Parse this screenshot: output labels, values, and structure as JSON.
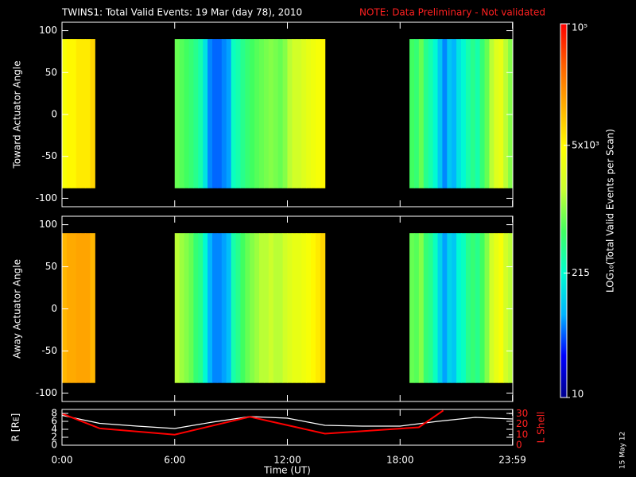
{
  "title": "TWINS1: Total Valid Events: 19 Mar (day  78), 2010",
  "note": "NOTE: Data Preliminary - Not validated",
  "stamp": "15 May 12",
  "chart_data": [
    {
      "type": "heatmap",
      "ylabel": "Toward Actuator Angle",
      "xlim": [
        0,
        24
      ],
      "xticks": [
        0,
        6,
        12,
        18,
        {
          "value": 23.983,
          "label": "23:59"
        }
      ],
      "ylim": [
        -110,
        110
      ],
      "yticks": [
        100,
        50,
        0,
        -50,
        -100
      ],
      "angle_range": [
        -88,
        90
      ],
      "x": [
        0,
        0.25,
        0.5,
        0.75,
        1,
        1.25,
        1.5,
        6,
        6.25,
        6.5,
        6.75,
        7,
        7.25,
        7.5,
        7.75,
        8,
        8.25,
        8.5,
        8.75,
        9,
        9.25,
        9.5,
        9.75,
        10,
        10.25,
        10.5,
        10.75,
        11,
        11.25,
        11.5,
        11.75,
        12,
        12.25,
        12.5,
        12.75,
        13,
        13.25,
        13.5,
        13.75,
        18.5,
        18.75,
        19,
        19.25,
        19.5,
        19.75,
        20,
        20.25,
        20.5,
        20.75,
        21,
        21.25,
        21.5,
        21.75,
        22,
        22.25,
        22.5,
        22.75,
        23,
        23.25,
        23.5,
        23.75
      ],
      "values": [
        4000,
        5000,
        5000,
        6000,
        6000,
        6000,
        8000,
        800,
        700,
        600,
        500,
        400,
        300,
        150,
        60,
        50,
        50,
        60,
        70,
        250,
        300,
        400,
        500,
        600,
        700,
        800,
        900,
        1000,
        900,
        800,
        1000,
        1500,
        2000,
        2000,
        2500,
        3000,
        3500,
        4000,
        5000,
        600,
        500,
        800,
        400,
        300,
        200,
        100,
        60,
        100,
        80,
        150,
        200,
        300,
        400,
        300,
        500,
        800,
        1500,
        2500,
        3000,
        1500,
        1000
      ]
    },
    {
      "type": "heatmap",
      "ylabel": "Away Actuator Angle",
      "xlim": [
        0,
        24
      ],
      "xticks": [
        0,
        6,
        12,
        18,
        {
          "value": 23.983,
          "label": "23:59"
        }
      ],
      "ylim": [
        -110,
        110
      ],
      "yticks": [
        100,
        50,
        0,
        -50,
        -100
      ],
      "angle_range": [
        -88,
        90
      ],
      "x": [
        0,
        0.25,
        0.5,
        0.75,
        1,
        1.25,
        1.5,
        6,
        6.25,
        6.5,
        6.75,
        7,
        7.25,
        7.5,
        7.75,
        8,
        8.25,
        8.5,
        8.75,
        9,
        9.25,
        9.5,
        9.75,
        10,
        10.25,
        10.5,
        10.75,
        11,
        11.25,
        11.5,
        11.75,
        12,
        12.25,
        12.5,
        12.75,
        13,
        13.25,
        13.5,
        13.75,
        18.5,
        18.75,
        19,
        19.25,
        19.5,
        19.75,
        20,
        20.25,
        20.5,
        20.75,
        21,
        21.25,
        21.5,
        21.75,
        22,
        22.25,
        22.5,
        22.75,
        23,
        23.25,
        23.5,
        23.75
      ],
      "values": [
        12000,
        14000,
        14000,
        15000,
        15000,
        15000,
        12000,
        1500,
        1200,
        1000,
        800,
        500,
        400,
        200,
        80,
        60,
        60,
        70,
        90,
        300,
        400,
        600,
        800,
        1000,
        1200,
        1500,
        1500,
        1800,
        1500,
        1500,
        2000,
        2500,
        3000,
        3000,
        3500,
        4000,
        5000,
        6000,
        8000,
        800,
        700,
        1000,
        500,
        400,
        250,
        120,
        70,
        120,
        100,
        200,
        250,
        400,
        500,
        400,
        600,
        1000,
        2000,
        3000,
        4000,
        2000,
        1500
      ]
    },
    {
      "type": "line",
      "xlabel": "Time (UT)",
      "ylabel": "R [Rᴇ]",
      "y2label": "L Shell",
      "xlim": [
        0,
        24
      ],
      "xticks": [
        {
          "value": 0,
          "label": "0:00"
        },
        {
          "value": 6,
          "label": "6:00"
        },
        {
          "value": 12,
          "label": "12:00"
        },
        {
          "value": 18,
          "label": "18:00"
        },
        {
          "value": 23.983,
          "label": "23:59"
        }
      ],
      "ylim": [
        0,
        9
      ],
      "yticks": [
        0,
        2,
        4,
        6,
        8
      ],
      "y2lim": [
        0,
        34
      ],
      "y2ticks": [
        0,
        10,
        20,
        30
      ],
      "series": [
        {
          "name": "R",
          "color": "#ffffff",
          "x": [
            0,
            1,
            2,
            4,
            6,
            8,
            10,
            12,
            14,
            16,
            18,
            20,
            22,
            24
          ],
          "values": [
            7.5,
            6.5,
            5.5,
            4.8,
            4.2,
            5.8,
            7.2,
            6.8,
            5.0,
            4.8,
            4.8,
            6.0,
            7.0,
            6.6
          ]
        },
        {
          "name": "L Shell",
          "color": "#ff0000",
          "axis": "y2",
          "x": [
            0,
            2,
            6,
            10,
            14,
            19,
            20.3
          ],
          "values": [
            30,
            16,
            10,
            27,
            11,
            17,
            33
          ]
        }
      ]
    }
  ],
  "colorbar": {
    "label": "LOG₁₀(Total Valid Events per Scan)",
    "lim": [
      10,
      100000
    ],
    "log": true,
    "ticks": [
      {
        "value": 10,
        "label": "10"
      },
      {
        "value": 215,
        "label": "215"
      },
      {
        "value": 5000,
        "label": "5x10³"
      },
      {
        "value": 100000,
        "label": "10⁵"
      }
    ],
    "colormap": [
      "#00008c",
      "#0000ff",
      "#00b4ff",
      "#00ffd0",
      "#40ff60",
      "#c8ff30",
      "#ffff00",
      "#ffb000",
      "#ff6000",
      "#ff0000"
    ]
  }
}
